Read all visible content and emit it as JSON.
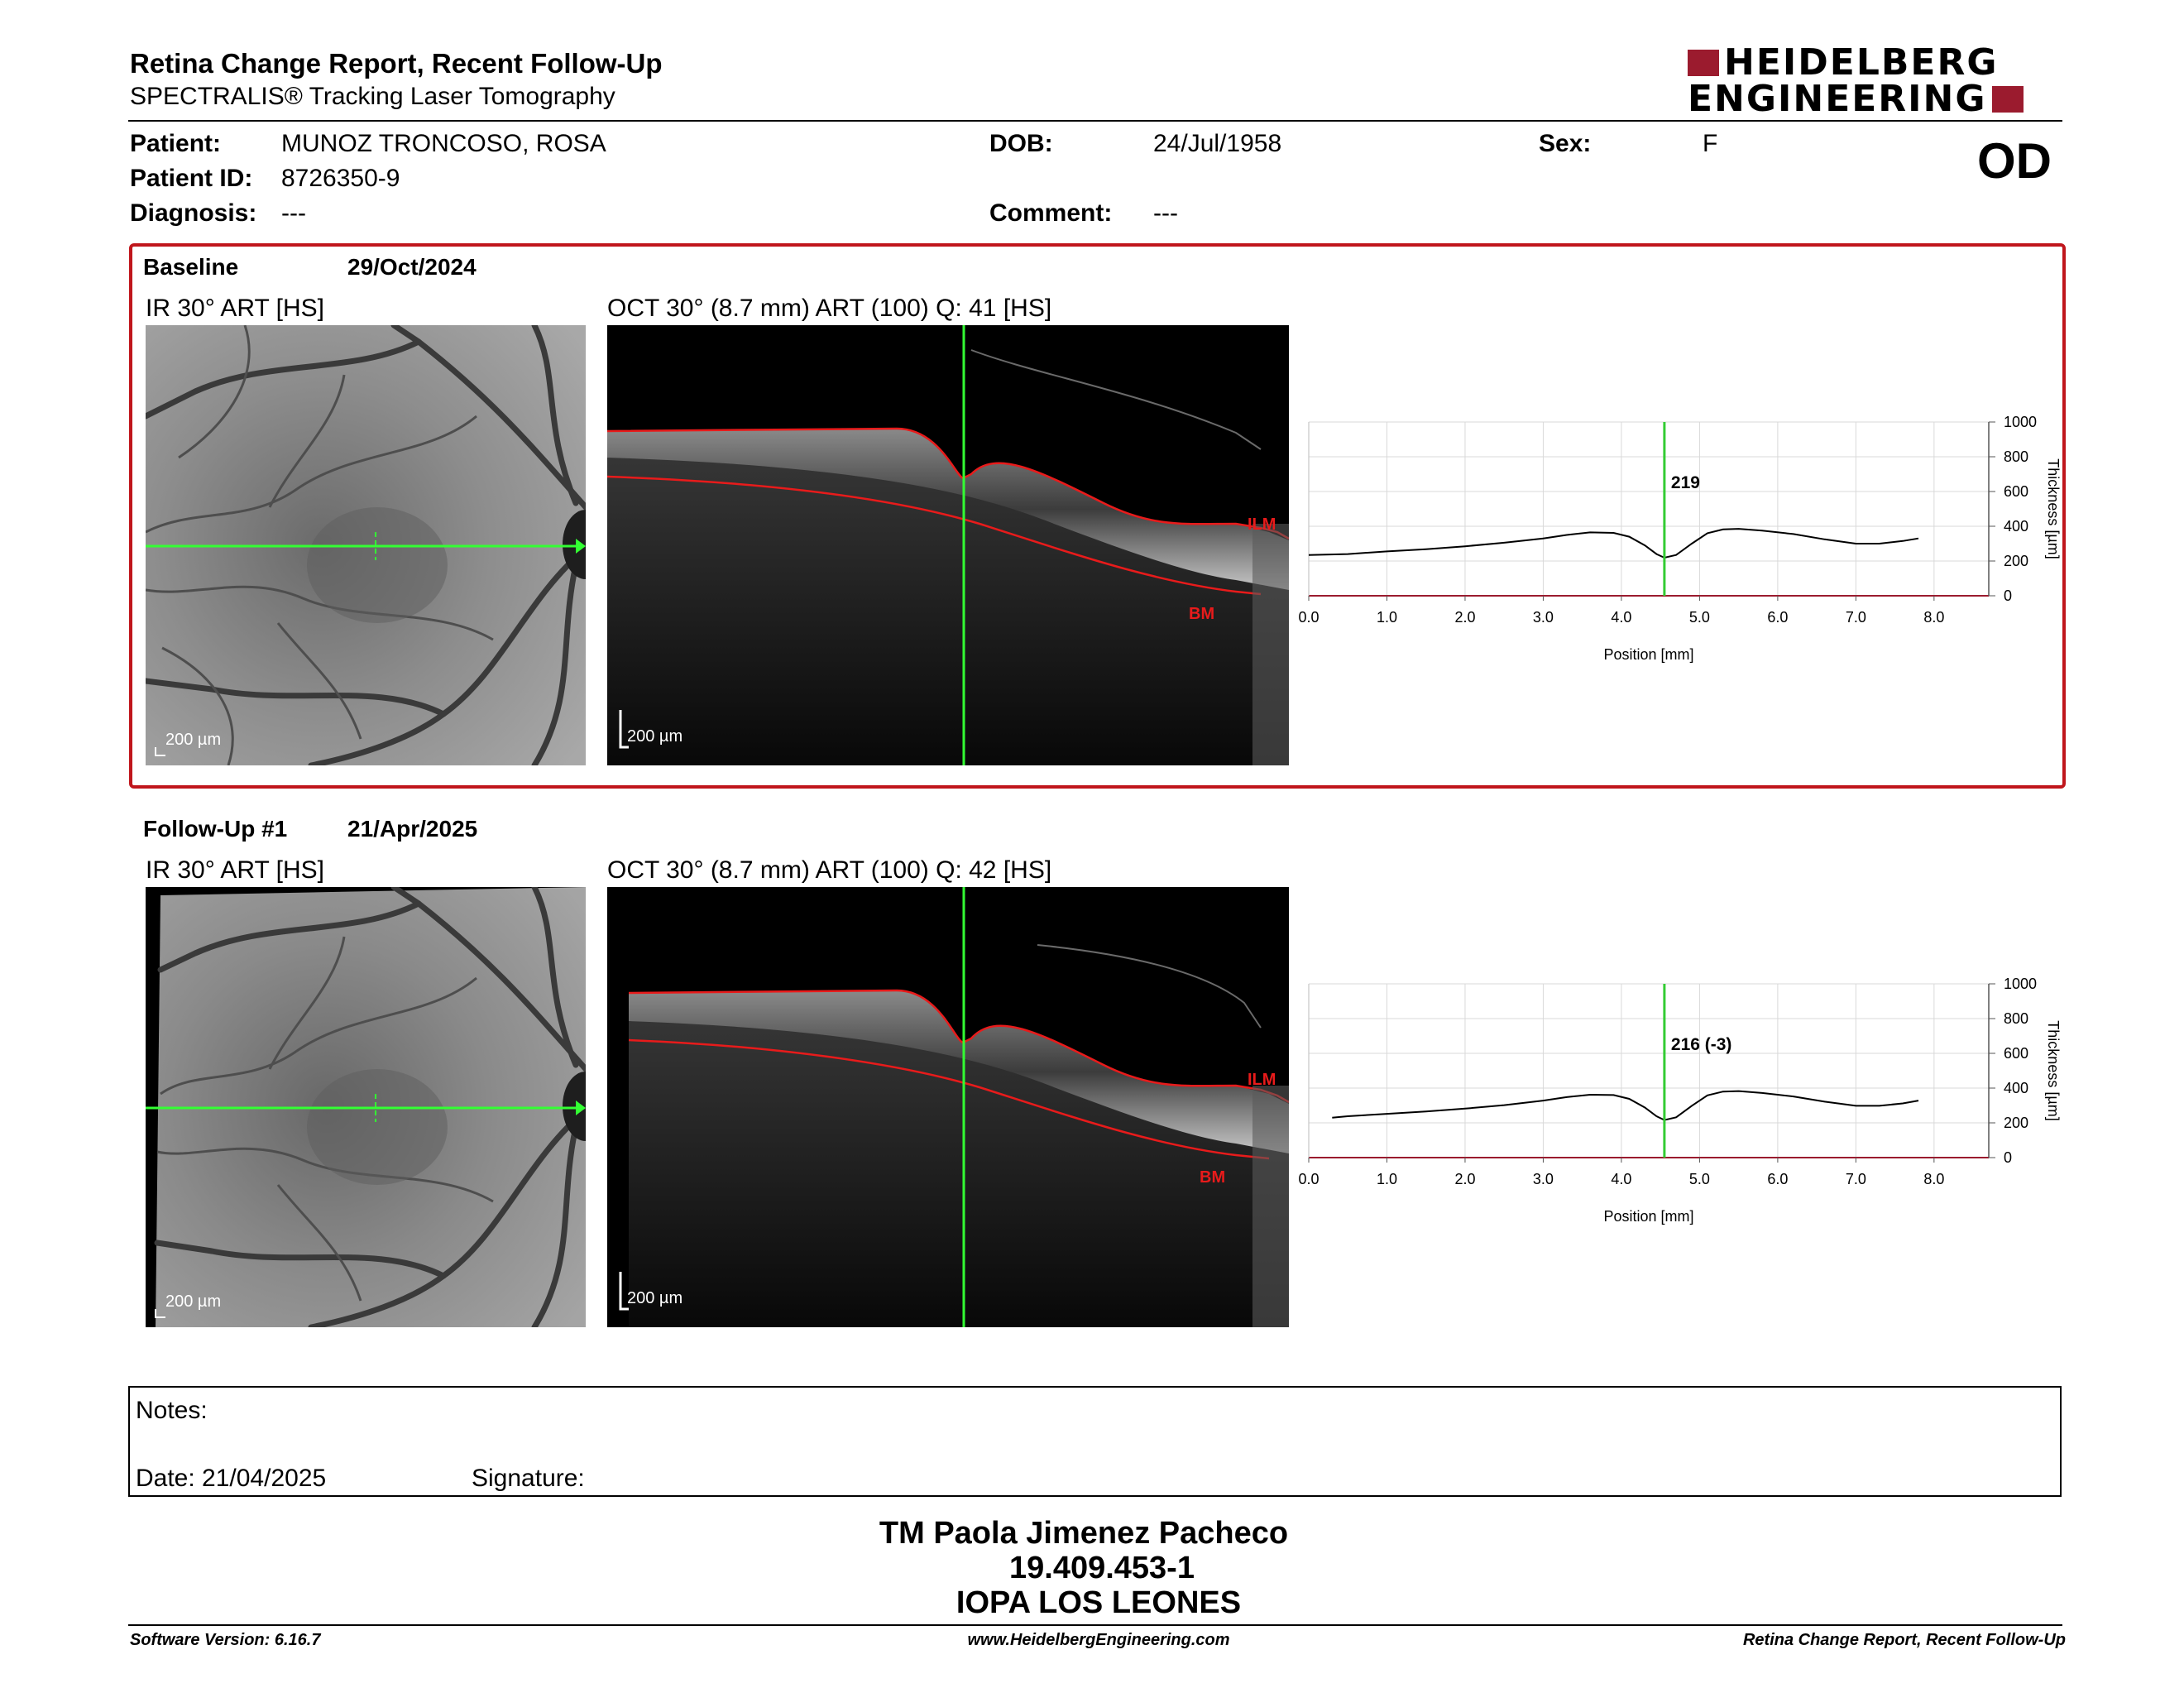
{
  "header": {
    "title": "Retina Change Report, Recent Follow-Up",
    "subtitle": "SPECTRALIS® Tracking Laser Tomography",
    "logo_line1": "HEIDELBERG",
    "logo_line2": "ENGINEERING"
  },
  "patient": {
    "patient_label": "Patient:",
    "patient_value": "MUNOZ TRONCOSO, ROSA",
    "dob_label": "DOB:",
    "dob_value": "24/Jul/1958",
    "sex_label": "Sex:",
    "sex_value": "F",
    "id_label": "Patient ID:",
    "id_value": "8726350-9",
    "diagnosis_label": "Diagnosis:",
    "diagnosis_value": "---",
    "comment_label": "Comment:",
    "comment_value": "---",
    "eye": "OD"
  },
  "exams": [
    {
      "name": "Baseline",
      "date": "29/Oct/2024",
      "ir_title": "IR 30° ART [HS]",
      "oct_title": "OCT 30° (8.7 mm) ART (100) Q: 41 [HS]",
      "ir_scale": "200 µm",
      "oct_scale": "200 µm",
      "ilm_label": "ILM",
      "bm_label": "BM",
      "marker_value": "219"
    },
    {
      "name": "Follow-Up #1",
      "date": "21/Apr/2025",
      "ir_title": "IR 30° ART [HS]",
      "oct_title": "OCT 30° (8.7 mm) ART (100) Q: 42 [HS]",
      "ir_scale": "200 µm",
      "oct_scale": "200 µm",
      "ilm_label": "ILM",
      "bm_label": "BM",
      "marker_value": "216 (-3)"
    }
  ],
  "chart_data": [
    {
      "type": "line",
      "xlabel": "Position [mm]",
      "ylabel": "Thickness [µm]",
      "xlim": [
        0,
        8.7
      ],
      "ylim": [
        0,
        1000
      ],
      "xticks": [
        "0.0",
        "1.0",
        "2.0",
        "3.0",
        "4.0",
        "5.0",
        "6.0",
        "7.0",
        "8.0"
      ],
      "yticks": [
        "0",
        "200",
        "400",
        "600",
        "800",
        "1000"
      ],
      "marker_x": 4.55,
      "marker_label": "219",
      "x": [
        0.0,
        0.5,
        1.0,
        1.5,
        2.0,
        2.5,
        3.0,
        3.3,
        3.6,
        3.9,
        4.1,
        4.3,
        4.45,
        4.55,
        4.7,
        4.9,
        5.1,
        5.3,
        5.5,
        5.8,
        6.2,
        6.6,
        7.0,
        7.3,
        7.6,
        7.8
      ],
      "y": [
        235,
        240,
        255,
        268,
        285,
        305,
        330,
        350,
        365,
        362,
        340,
        290,
        240,
        219,
        235,
        300,
        360,
        382,
        385,
        375,
        355,
        325,
        300,
        300,
        315,
        330
      ]
    },
    {
      "type": "line",
      "xlabel": "Position [mm]",
      "ylabel": "Thickness [µm]",
      "xlim": [
        0,
        8.7
      ],
      "ylim": [
        0,
        1000
      ],
      "xticks": [
        "0.0",
        "1.0",
        "2.0",
        "3.0",
        "4.0",
        "5.0",
        "6.0",
        "7.0",
        "8.0"
      ],
      "yticks": [
        "0",
        "200",
        "400",
        "600",
        "800",
        "1000"
      ],
      "marker_x": 4.55,
      "marker_label": "216 (-3)",
      "x": [
        0.3,
        0.5,
        1.0,
        1.5,
        2.0,
        2.5,
        3.0,
        3.3,
        3.6,
        3.9,
        4.1,
        4.3,
        4.45,
        4.55,
        4.7,
        4.9,
        5.1,
        5.3,
        5.5,
        5.8,
        6.2,
        6.6,
        7.0,
        7.3,
        7.6,
        7.8
      ],
      "y": [
        230,
        238,
        252,
        265,
        282,
        302,
        328,
        348,
        362,
        360,
        338,
        288,
        238,
        216,
        232,
        298,
        358,
        380,
        383,
        372,
        352,
        322,
        298,
        298,
        312,
        328
      ]
    }
  ],
  "notes": {
    "notes_label": "Notes:",
    "date_label": "Date: 21/04/2025",
    "signature_label": "Signature:"
  },
  "signature": {
    "name": "TM Paola Jimenez Pacheco",
    "id": "19.409.453-1",
    "org": "IOPA LOS LEONES"
  },
  "footer": {
    "software": "Software Version: 6.16.7",
    "website": "www.HeidelbergEngineering.com",
    "report": "Retina Change Report, Recent Follow-Up"
  }
}
